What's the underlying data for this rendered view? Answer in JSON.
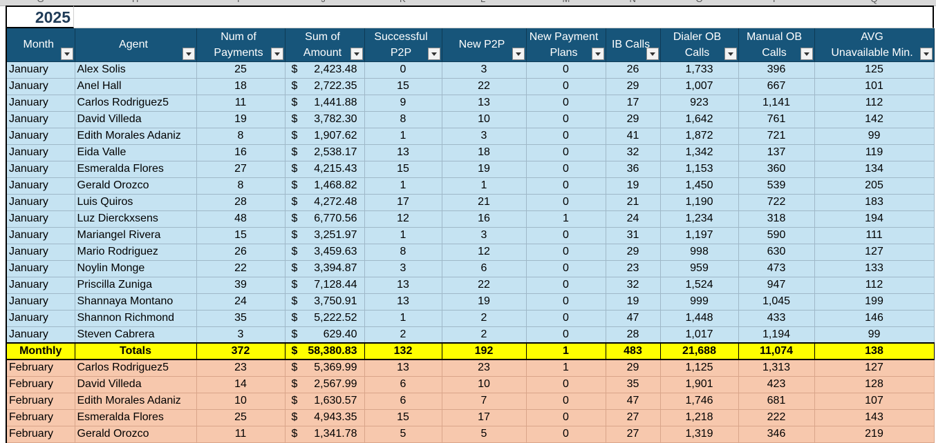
{
  "sheet": {
    "year": "2025",
    "column_letters": [
      "G",
      "H",
      "I",
      "J",
      "K",
      "L",
      "M",
      "N",
      "O",
      "P",
      "Q"
    ],
    "currency_symbol": "$",
    "headers": [
      {
        "key": "month",
        "label": "Month"
      },
      {
        "key": "agent",
        "label": "Agent"
      },
      {
        "key": "num_payments",
        "label": "Num of Payments"
      },
      {
        "key": "sum_amount",
        "label": "Sum of Amount"
      },
      {
        "key": "successful_p2p",
        "label": "Successful P2P"
      },
      {
        "key": "new_p2p",
        "label": "New P2P"
      },
      {
        "key": "new_payment_plans",
        "label": "New Payment Plans"
      },
      {
        "key": "ib_calls",
        "label": "IB Calls"
      },
      {
        "key": "dialer_ob_calls",
        "label": "Dialer OB Calls"
      },
      {
        "key": "manual_ob_calls",
        "label": "Manual OB Calls"
      },
      {
        "key": "avg_unavailable",
        "label": "AVG Unavailable Min."
      }
    ],
    "january_rows": [
      [
        "January",
        "Alex Solis",
        "25",
        "2,423.48",
        "0",
        "3",
        "0",
        "26",
        "1,733",
        "396",
        "125"
      ],
      [
        "January",
        "Anel Hall",
        "18",
        "2,722.35",
        "15",
        "22",
        "0",
        "29",
        "1,007",
        "667",
        "101"
      ],
      [
        "January",
        "Carlos Rodriguez5",
        "11",
        "1,441.88",
        "9",
        "13",
        "0",
        "17",
        "923",
        "1,141",
        "112"
      ],
      [
        "January",
        "David Villeda",
        "19",
        "3,782.30",
        "8",
        "10",
        "0",
        "29",
        "1,642",
        "761",
        "142"
      ],
      [
        "January",
        "Edith Morales Adaniz",
        "8",
        "1,907.62",
        "1",
        "3",
        "0",
        "41",
        "1,872",
        "721",
        "99"
      ],
      [
        "January",
        "Eida Valle",
        "16",
        "2,538.17",
        "13",
        "18",
        "0",
        "32",
        "1,342",
        "137",
        "119"
      ],
      [
        "January",
        "Esmeralda Flores",
        "27",
        "4,215.43",
        "15",
        "19",
        "0",
        "36",
        "1,153",
        "360",
        "134"
      ],
      [
        "January",
        "Gerald Orozco",
        "8",
        "1,468.82",
        "1",
        "1",
        "0",
        "19",
        "1,450",
        "539",
        "205"
      ],
      [
        "January",
        "Luis Quiros",
        "28",
        "4,272.48",
        "17",
        "21",
        "0",
        "21",
        "1,190",
        "722",
        "183"
      ],
      [
        "January",
        "Luz Dierckxsens",
        "48",
        "6,770.56",
        "12",
        "16",
        "1",
        "24",
        "1,234",
        "318",
        "194"
      ],
      [
        "January",
        "Mariangel Rivera",
        "15",
        "3,251.97",
        "1",
        "3",
        "0",
        "31",
        "1,197",
        "590",
        "111"
      ],
      [
        "January",
        "Mario Rodriguez",
        "26",
        "3,459.63",
        "8",
        "12",
        "0",
        "29",
        "998",
        "630",
        "127"
      ],
      [
        "January",
        "Noylin Monge",
        "22",
        "3,394.87",
        "3",
        "6",
        "0",
        "23",
        "959",
        "473",
        "133"
      ],
      [
        "January",
        "Priscilla Zuniga",
        "39",
        "7,128.44",
        "13",
        "22",
        "0",
        "32",
        "1,524",
        "947",
        "112"
      ],
      [
        "January",
        "Shannaya Montano",
        "24",
        "3,750.91",
        "13",
        "19",
        "0",
        "19",
        "999",
        "1,045",
        "199"
      ],
      [
        "January",
        "Shannon Richmond",
        "35",
        "5,222.52",
        "1",
        "2",
        "0",
        "47",
        "1,448",
        "433",
        "146"
      ],
      [
        "January",
        "Steven Cabrera",
        "3",
        "629.40",
        "2",
        "2",
        "0",
        "28",
        "1,017",
        "1,194",
        "99"
      ]
    ],
    "totals_row": [
      "Monthly",
      "Totals",
      "372",
      "58,380.83",
      "132",
      "192",
      "1",
      "483",
      "21,688",
      "11,074",
      "138"
    ],
    "february_rows": [
      [
        "February",
        "Carlos Rodriguez5",
        "23",
        "5,369.99",
        "13",
        "23",
        "1",
        "29",
        "1,125",
        "1,313",
        "127"
      ],
      [
        "February",
        "David Villeda",
        "14",
        "2,567.99",
        "6",
        "10",
        "0",
        "35",
        "1,901",
        "423",
        "128"
      ],
      [
        "February",
        "Edith Morales Adaniz",
        "10",
        "1,630.57",
        "6",
        "7",
        "0",
        "47",
        "1,746",
        "681",
        "107"
      ],
      [
        "February",
        "Esmeralda Flores",
        "25",
        "4,943.35",
        "15",
        "17",
        "0",
        "27",
        "1,218",
        "222",
        "143"
      ],
      [
        "February",
        "Gerald Orozco",
        "11",
        "1,341.78",
        "5",
        "5",
        "0",
        "27",
        "1,319",
        "346",
        "219"
      ]
    ],
    "colors": {
      "header_bg": "#17557a",
      "january_bg": "#c5e3f2",
      "february_bg": "#f7c8ad",
      "totals_bg": "#ffff00"
    }
  }
}
